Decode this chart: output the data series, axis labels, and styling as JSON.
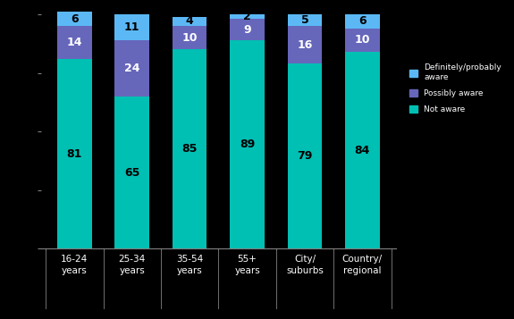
{
  "categories": [
    "16-24\nyears",
    "25-34\nyears",
    "35-54\nyears",
    "55+\nyears",
    "City/\nsuburbs",
    "Country/\nregional"
  ],
  "bottom_values": [
    81,
    65,
    85,
    89,
    79,
    84
  ],
  "middle_values": [
    14,
    24,
    10,
    9,
    16,
    10
  ],
  "top_values": [
    6,
    11,
    4,
    2,
    5,
    6
  ],
  "bottom_color": "#00BFB3",
  "middle_color": "#6666BB",
  "top_color": "#5BB8F5",
  "legend_labels": [
    "Definitely/probably\naware",
    "Possibly aware",
    "Not aware"
  ],
  "background_color": "#000000",
  "bar_width": 0.6,
  "ylim": [
    0,
    102
  ],
  "bottom_label_color": "#000000",
  "middle_label_color": "#ffffff",
  "top_label_color": "#000000"
}
